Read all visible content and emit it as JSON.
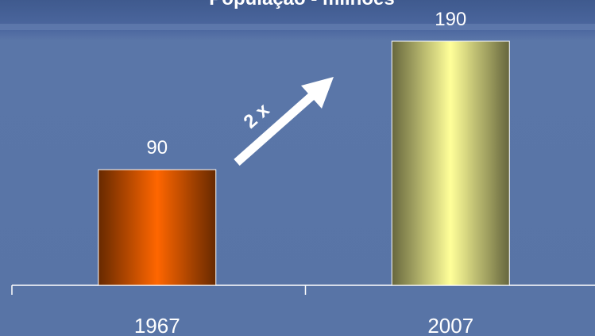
{
  "chart_data": {
    "type": "bar",
    "title": "População - milhões",
    "categories": [
      "1967",
      "2007"
    ],
    "values": [
      90,
      190
    ],
    "colors": [
      "#ff6600",
      "#ffff99"
    ],
    "annotation": "2 x"
  }
}
